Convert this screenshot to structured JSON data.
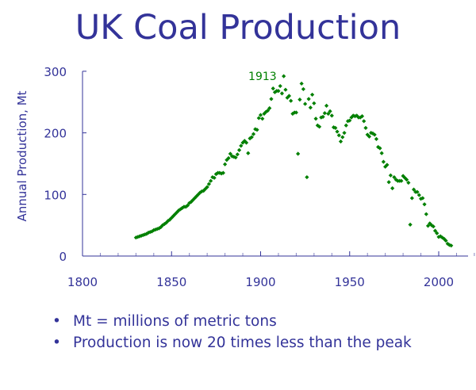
{
  "chart_data": {
    "type": "scatter",
    "title": "UK Coal Production",
    "xlabel": "",
    "ylabel": "Annual Production, Mt",
    "xlim": [
      1800,
      2020
    ],
    "ylim": [
      0,
      300
    ],
    "x_ticks": [
      1800,
      1850,
      1900,
      1950,
      2000
    ],
    "y_ticks": [
      0,
      100,
      200,
      300
    ],
    "grid": false,
    "marker_color": "#008000",
    "axis_color": "#333399",
    "annotation": {
      "text": "1913",
      "x": 1913,
      "y": 292
    },
    "x": [
      1830,
      1831,
      1832,
      1833,
      1834,
      1835,
      1836,
      1837,
      1838,
      1839,
      1840,
      1841,
      1842,
      1843,
      1844,
      1845,
      1846,
      1847,
      1848,
      1849,
      1850,
      1851,
      1852,
      1853,
      1854,
      1855,
      1856,
      1857,
      1858,
      1859,
      1860,
      1861,
      1862,
      1863,
      1864,
      1865,
      1866,
      1867,
      1868,
      1869,
      1870,
      1871,
      1872,
      1873,
      1874,
      1875,
      1876,
      1877,
      1878,
      1879,
      1880,
      1881,
      1882,
      1883,
      1884,
      1885,
      1886,
      1887,
      1888,
      1889,
      1890,
      1891,
      1892,
      1893,
      1894,
      1895,
      1896,
      1897,
      1898,
      1899,
      1900,
      1901,
      1902,
      1903,
      1904,
      1905,
      1906,
      1907,
      1908,
      1909,
      1910,
      1911,
      1912,
      1913,
      1914,
      1915,
      1916,
      1917,
      1918,
      1919,
      1920,
      1921,
      1922,
      1923,
      1924,
      1925,
      1926,
      1927,
      1928,
      1929,
      1930,
      1931,
      1932,
      1933,
      1934,
      1935,
      1936,
      1937,
      1938,
      1939,
      1940,
      1941,
      1942,
      1943,
      1944,
      1945,
      1946,
      1947,
      1948,
      1949,
      1950,
      1951,
      1952,
      1953,
      1954,
      1955,
      1956,
      1957,
      1958,
      1959,
      1960,
      1961,
      1962,
      1963,
      1964,
      1965,
      1966,
      1967,
      1968,
      1969,
      1970,
      1971,
      1972,
      1973,
      1974,
      1975,
      1976,
      1977,
      1978,
      1979,
      1980,
      1981,
      1982,
      1983,
      1984,
      1985,
      1986,
      1987,
      1988,
      1989,
      1990,
      1991,
      1992,
      1993,
      1994,
      1995,
      1996,
      1997,
      1998,
      1999,
      2000,
      2001,
      2002,
      2003,
      2004,
      2005,
      2006,
      2007
    ],
    "y": [
      30,
      31,
      32,
      33,
      34,
      35,
      36,
      38,
      39,
      40,
      42,
      43,
      44,
      45,
      47,
      50,
      52,
      54,
      57,
      59,
      62,
      65,
      68,
      71,
      74,
      76,
      78,
      80,
      80,
      82,
      86,
      88,
      91,
      94,
      97,
      100,
      103,
      105,
      106,
      109,
      112,
      117,
      122,
      128,
      127,
      133,
      135,
      135,
      134,
      135,
      149,
      156,
      159,
      166,
      162,
      161,
      160,
      165,
      172,
      179,
      184,
      187,
      184,
      167,
      191,
      193,
      198,
      206,
      205,
      224,
      229,
      223,
      231,
      234,
      236,
      240,
      255,
      272,
      266,
      268,
      268,
      276,
      264,
      292,
      270,
      257,
      260,
      252,
      231,
      233,
      233,
      166,
      254,
      280,
      271,
      247,
      128,
      255,
      241,
      262,
      248,
      223,
      212,
      210,
      225,
      226,
      232,
      244,
      231,
      235,
      228,
      209,
      208,
      202,
      196,
      186,
      193,
      200,
      212,
      219,
      220,
      225,
      228,
      227,
      228,
      225,
      225,
      227,
      219,
      208,
      197,
      194,
      200,
      199,
      197,
      190,
      177,
      175,
      167,
      153,
      145,
      148,
      120,
      131,
      110,
      128,
      124,
      122,
      122,
      122,
      130,
      127,
      124,
      119,
      51,
      94,
      108,
      104,
      104,
      99,
      93,
      94,
      84,
      68,
      49,
      53,
      50,
      48,
      41,
      37,
      31,
      32,
      30,
      28,
      25,
      20,
      18,
      17
    ]
  },
  "bullets": [
    "Mt = millions of metric tons",
    "Production is now 20 times less than the peak"
  ],
  "bullet_glyph": "•"
}
